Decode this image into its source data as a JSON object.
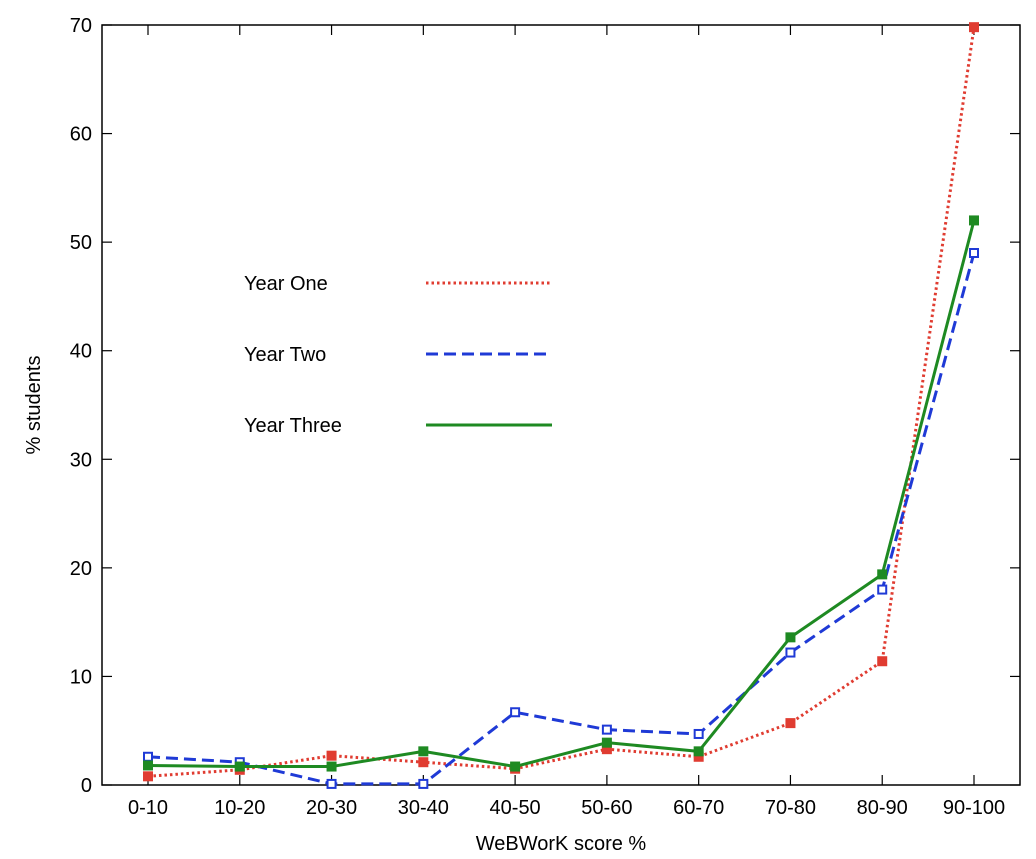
{
  "chart_data": {
    "type": "line",
    "categories": [
      "0-10",
      "10-20",
      "20-30",
      "30-40",
      "40-50",
      "50-60",
      "60-70",
      "70-80",
      "80-90",
      "90-100"
    ],
    "xlabel": "WeBWorK score %",
    "ylabel": "% students",
    "ylim": [
      0,
      70
    ],
    "yticks": [
      0,
      10,
      20,
      30,
      40,
      50,
      60,
      70
    ],
    "grid": false,
    "legend_position": "upper-left-inside",
    "series": [
      {
        "name": "Year One",
        "color": "#e03c31",
        "dash": "dotted",
        "marker": "filled-square",
        "values": [
          0.8,
          1.4,
          2.7,
          2.1,
          1.5,
          3.3,
          2.6,
          5.7,
          11.4,
          69.8
        ]
      },
      {
        "name": "Year Two",
        "color": "#1f3ad6",
        "dash": "dashed",
        "marker": "open-square",
        "values": [
          2.6,
          2.1,
          0.1,
          0.1,
          6.7,
          5.1,
          4.7,
          12.2,
          18.0,
          49.0
        ]
      },
      {
        "name": "Year Three",
        "color": "#1e8a22",
        "dash": "solid",
        "marker": "filled-square",
        "values": [
          1.8,
          1.7,
          1.7,
          3.1,
          1.7,
          3.9,
          3.1,
          13.6,
          19.4,
          52.0
        ]
      }
    ]
  }
}
